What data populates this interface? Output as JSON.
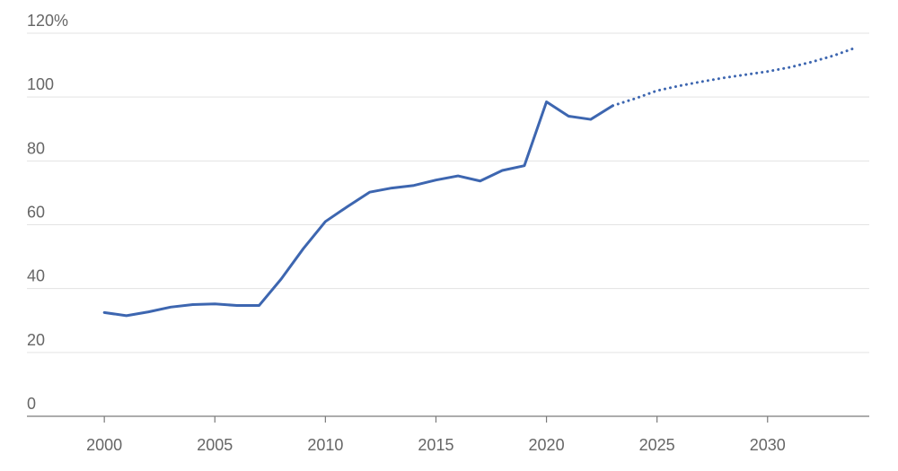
{
  "chart_data": {
    "type": "line",
    "title": "",
    "xlabel": "",
    "ylabel": "",
    "unit_suffix": "%",
    "xlim": [
      1996.5,
      2034.6
    ],
    "ylim": [
      0,
      120
    ],
    "x_ticks": [
      2000,
      2005,
      2010,
      2015,
      2020,
      2025,
      2030
    ],
    "y_ticks": [
      0,
      20,
      40,
      60,
      80,
      100,
      120
    ],
    "y_tick_labels": [
      "0",
      "20",
      "40",
      "60",
      "80",
      "100",
      "120%"
    ],
    "grid": "horizontal",
    "legend": "none",
    "colors": {
      "series": "#3d66b0",
      "grid": "#e3e3e3",
      "axis": "#7a7a7a",
      "text": "#666666"
    },
    "series": [
      {
        "style": "solid",
        "points": [
          [
            2000,
            32.5
          ],
          [
            2001,
            31.5
          ],
          [
            2002,
            32.7
          ],
          [
            2003,
            34.2
          ],
          [
            2004,
            35.0
          ],
          [
            2005,
            35.2
          ],
          [
            2006,
            34.7
          ],
          [
            2007,
            34.7
          ],
          [
            2008,
            43.0
          ],
          [
            2009,
            52.5
          ],
          [
            2010,
            61.0
          ],
          [
            2011,
            65.7
          ],
          [
            2012,
            70.2
          ],
          [
            2013,
            71.5
          ],
          [
            2014,
            72.3
          ],
          [
            2015,
            74.0
          ],
          [
            2016,
            75.3
          ],
          [
            2017,
            73.7
          ],
          [
            2018,
            77.0
          ],
          [
            2019,
            78.5
          ],
          [
            2020,
            98.5
          ],
          [
            2021,
            94.0
          ],
          [
            2022,
            93.0
          ],
          [
            2023,
            97.3
          ]
        ]
      },
      {
        "style": "dotted",
        "points": [
          [
            2023,
            97.3
          ],
          [
            2024,
            99.5
          ],
          [
            2025,
            102.0
          ],
          [
            2026,
            103.5
          ],
          [
            2027,
            104.8
          ],
          [
            2028,
            106.0
          ],
          [
            2029,
            107.0
          ],
          [
            2030,
            108.0
          ],
          [
            2031,
            109.3
          ],
          [
            2032,
            111.0
          ],
          [
            2033,
            113.0
          ],
          [
            2034,
            115.5
          ]
        ]
      }
    ]
  }
}
